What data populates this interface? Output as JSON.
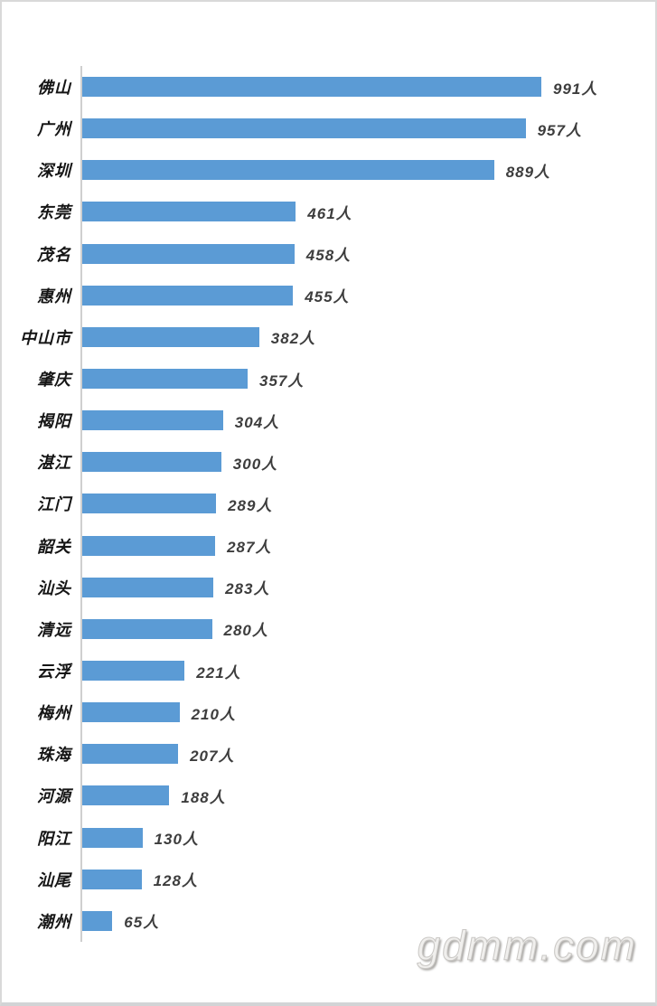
{
  "chart_data": {
    "type": "bar",
    "orientation": "horizontal",
    "title": "",
    "xlabel": "",
    "ylabel": "",
    "grid": false,
    "legend": false,
    "value_suffix": "人",
    "categories": [
      "佛山",
      "广州",
      "深圳",
      "东莞",
      "茂名",
      "惠州",
      "中山市",
      "肇庆",
      "揭阳",
      "湛江",
      "江门",
      "韶关",
      "汕头",
      "清远",
      "云浮",
      "梅州",
      "珠海",
      "河源",
      "阳江",
      "汕尾",
      "潮州"
    ],
    "values": [
      991,
      957,
      889,
      461,
      458,
      455,
      382,
      357,
      304,
      300,
      289,
      287,
      283,
      280,
      221,
      210,
      207,
      188,
      130,
      128,
      65
    ],
    "xlim": [
      0,
      1050
    ],
    "bar_color": "#5B9BD5",
    "axis_line_color": "#CFCFCF",
    "category_label_color": "#151515",
    "value_label_color": "#3D3D3D"
  },
  "watermark": {
    "text": "gdmm.com"
  }
}
